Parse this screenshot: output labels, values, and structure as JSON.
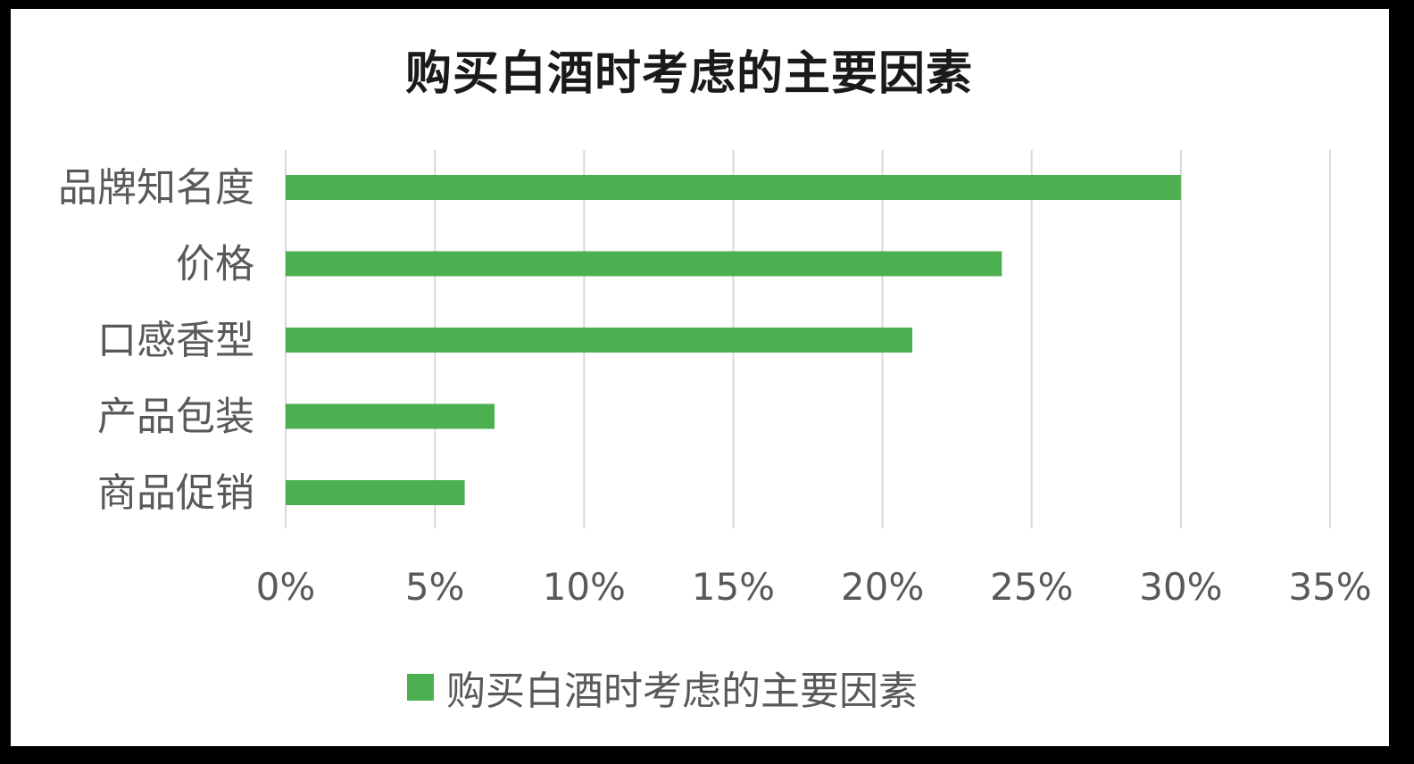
{
  "colors": {
    "bar": "#4caf50",
    "grid": "#d9d9d9",
    "text": "#595959"
  },
  "chart_data": {
    "type": "bar",
    "orientation": "horizontal",
    "title": "购买白酒时考虑的主要因素",
    "categories": [
      "品牌知名度",
      "价格",
      "口感香型",
      "产品包装",
      "商品促销"
    ],
    "series": [
      {
        "name": "购买白酒时考虑的主要因素",
        "values": [
          30,
          24,
          21,
          7,
          6
        ]
      }
    ],
    "xlim": [
      0,
      35
    ],
    "xticks": [
      "0%",
      "5%",
      "10%",
      "15%",
      "20%",
      "25%",
      "30%",
      "35%"
    ],
    "xtick_values": [
      0,
      5,
      10,
      15,
      20,
      25,
      30,
      35
    ],
    "grid": "vertical",
    "legend": "bottom"
  }
}
